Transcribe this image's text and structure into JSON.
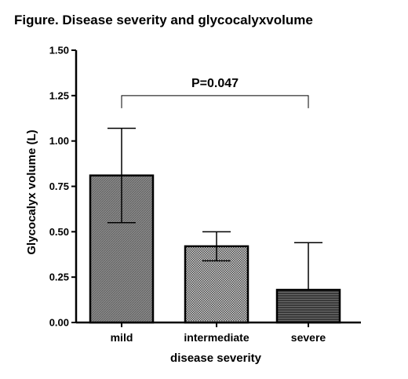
{
  "chart_data": {
    "type": "bar",
    "title": "Figure. Disease severity and glycocalyxvolume",
    "xlabel": "disease severity",
    "ylabel": "Glycocalyx volume (L)",
    "ylim": [
      0,
      1.5
    ],
    "yticks": [
      "0.00",
      "0.25",
      "0.50",
      "0.75",
      "1.00",
      "1.25",
      "1.50"
    ],
    "categories": [
      "mild",
      "intermediate",
      "severe"
    ],
    "values": [
      0.81,
      0.42,
      0.18
    ],
    "error_upper": [
      1.07,
      0.5,
      0.44
    ],
    "error_lower": [
      0.55,
      0.34,
      0.18
    ],
    "bar_patterns": [
      "diagonal-gray",
      "crosshatch-fine",
      "horizontal-dark"
    ],
    "annotation": {
      "text": "P=0.047",
      "from_category": "mild",
      "to_category": "severe",
      "y": 1.25
    },
    "grid": false,
    "legend": "none"
  }
}
